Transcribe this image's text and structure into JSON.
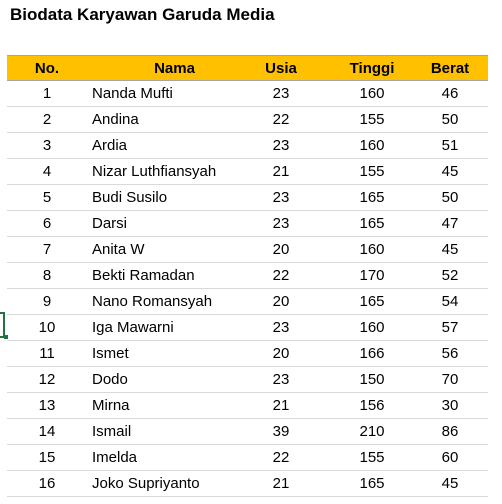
{
  "title": "Biodata Karyawan Garuda Media",
  "table": {
    "columns": [
      "No.",
      "Nama",
      "Usia",
      "Tinggi",
      "Berat"
    ],
    "rows": [
      [
        "1",
        "Nanda Mufti",
        "23",
        "160",
        "46"
      ],
      [
        "2",
        "Andina",
        "22",
        "155",
        "50"
      ],
      [
        "3",
        "Ardia",
        "23",
        "160",
        "51"
      ],
      [
        "4",
        "Nizar Luthfiansyah",
        "21",
        "155",
        "45"
      ],
      [
        "5",
        "Budi Susilo",
        "23",
        "165",
        "50"
      ],
      [
        "6",
        "Darsi",
        "23",
        "165",
        "47"
      ],
      [
        "7",
        "Anita W",
        "20",
        "160",
        "45"
      ],
      [
        "8",
        "Bekti Ramadan",
        "22",
        "170",
        "52"
      ],
      [
        "9",
        "Nano Romansyah",
        "20",
        "165",
        "54"
      ],
      [
        "10",
        "Iga Mawarni",
        "23",
        "160",
        "57"
      ],
      [
        "11",
        "Ismet",
        "20",
        "166",
        "56"
      ],
      [
        "12",
        "Dodo",
        "23",
        "150",
        "70"
      ],
      [
        "13",
        "Mirna",
        "21",
        "156",
        "30"
      ],
      [
        "14",
        "Ismail",
        "39",
        "210",
        "86"
      ],
      [
        "15",
        "Imelda",
        "22",
        "155",
        "60"
      ],
      [
        "16",
        "Joko Supriyanto",
        "21",
        "165",
        "45"
      ]
    ]
  },
  "colors": {
    "header_fill": "#ffc000",
    "selection_border": "#217346"
  }
}
